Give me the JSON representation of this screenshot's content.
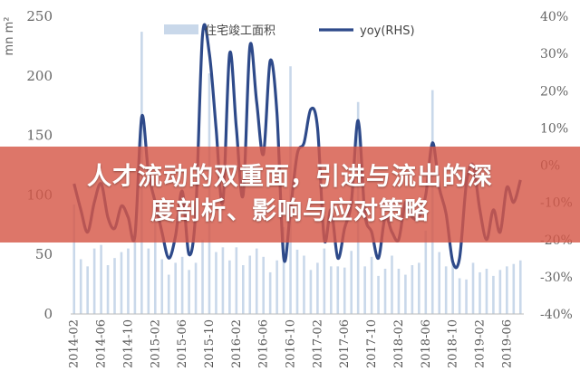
{
  "chart_data": {
    "type": "bar+line",
    "unit_label": "mn m²",
    "left_axis": {
      "ticks": [
        0,
        50,
        100,
        150,
        200,
        250
      ],
      "ylim": [
        0,
        250
      ]
    },
    "right_axis": {
      "ticks": [
        "-40%",
        "-30%",
        "-20%",
        "-10%",
        "0%",
        "10%",
        "20%",
        "30%",
        "40%"
      ],
      "ylim": [
        -40,
        40
      ]
    },
    "x_tick_labels": [
      "2014-02",
      "2014-06",
      "2014-10",
      "2015-02",
      "2015-06",
      "2015-10",
      "2016-02",
      "2016-06",
      "2016-10",
      "2017-02",
      "2017-06",
      "2017-10",
      "2018-02",
      "2018-06",
      "2018-10",
      "2019-02",
      "2019-06"
    ],
    "x_label_every": 4,
    "months": 67,
    "legend": {
      "bar_label": "住宅竣工面积",
      "line_label": "yoy(RHS)",
      "placement": "top"
    },
    "bar_color": "#c9d8ea",
    "line_color": "#2e4a8a",
    "series": [
      {
        "name": "住宅竣工面积",
        "axis": "left",
        "values": [
          92,
          46,
          40,
          55,
          58,
          41,
          47,
          52,
          55,
          62,
          237,
          55,
          93,
          46,
          33,
          43,
          48,
          37,
          43,
          62,
          202,
          52,
          56,
          45,
          56,
          41,
          49,
          55,
          48,
          35,
          45,
          73,
          208,
          54,
          49,
          37,
          43,
          55,
          40,
          40,
          39,
          53,
          178,
          40,
          48,
          32,
          38,
          49,
          38,
          33,
          41,
          43,
          70,
          188,
          52,
          40,
          42,
          30,
          29,
          43,
          35,
          38,
          32,
          37,
          40,
          42,
          45
        ]
      },
      {
        "name": "yoy(RHS)",
        "axis": "right",
        "values": [
          -5,
          -12,
          -18,
          -10,
          -5,
          -14,
          -17,
          -11,
          -14,
          -19,
          13,
          -2,
          -10,
          -18,
          -25,
          -19,
          -7,
          -24,
          -12,
          35,
          30,
          10,
          -10,
          30,
          10,
          -8,
          32,
          17,
          3,
          28,
          14,
          -25,
          -12,
          3,
          6,
          15,
          10,
          -20,
          -12,
          -25,
          -17,
          -10,
          12,
          -13,
          -18,
          -25,
          -14,
          -18,
          -20,
          -10,
          -14,
          -14,
          -8,
          6,
          -6,
          -13,
          -26,
          -25,
          -5,
          0,
          -12,
          -20,
          -12,
          -18,
          -6,
          -10,
          -4
        ]
      }
    ]
  },
  "headline": {
    "line1": "人才流动的双重面，引进与流出的深",
    "line2": "度剖析、影响与应对策略"
  }
}
